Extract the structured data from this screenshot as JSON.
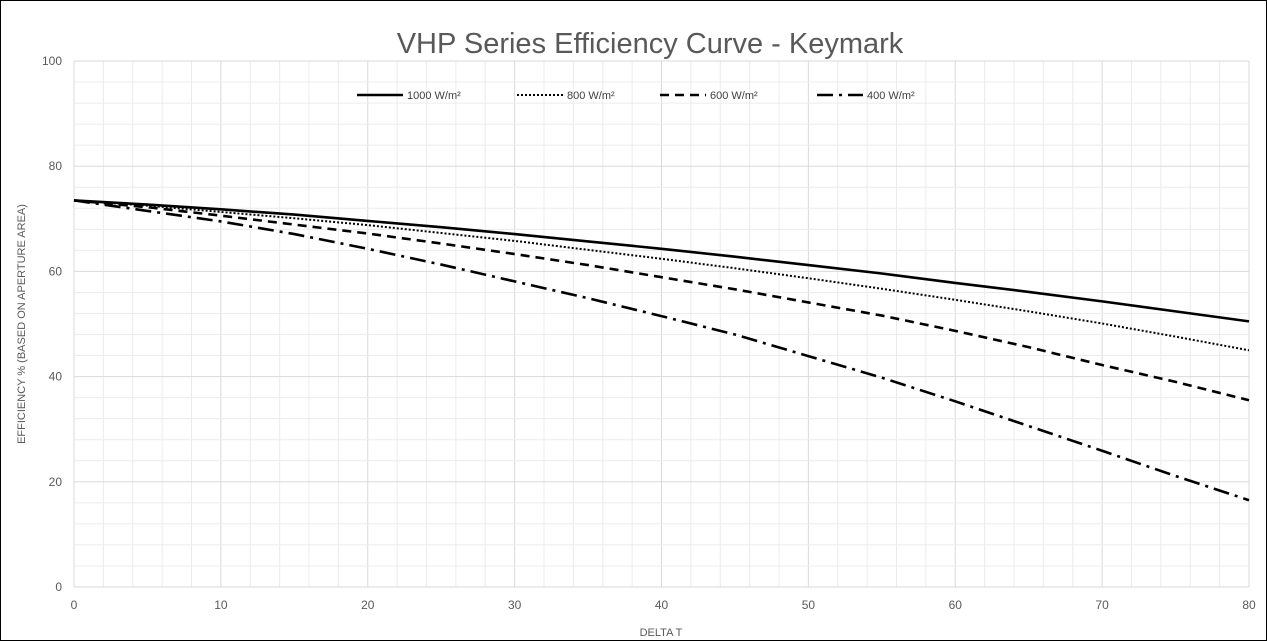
{
  "chart_data": {
    "type": "line",
    "title": "VHP Series Efficiency Curve - Keymark",
    "xlabel": "DELTA T",
    "ylabel": "EFFICIENCY % (BASED ON APERTURE AREA)",
    "xlim": [
      0,
      80
    ],
    "ylim": [
      0,
      100
    ],
    "x_ticks": [
      "0",
      "10",
      "20",
      "30",
      "40",
      "50",
      "60",
      "70",
      "80"
    ],
    "y_ticks": [
      "0",
      "20",
      "40",
      "60",
      "80",
      "100"
    ],
    "grid": true,
    "legend_position": "top",
    "x": [
      0,
      5,
      10,
      15,
      20,
      25,
      30,
      35,
      40,
      45,
      50,
      55,
      60,
      65,
      70,
      75,
      80
    ],
    "series": [
      {
        "name": "1000 W/m²",
        "dash": "solid",
        "values": [
          73.5,
          72.7,
          71.8,
          70.8,
          69.6,
          68.4,
          67.1,
          65.7,
          64.3,
          62.8,
          61.2,
          59.6,
          57.8,
          56.1,
          54.3,
          52.4,
          50.5
        ]
      },
      {
        "name": "800 W/m²",
        "dash": "dotted",
        "values": [
          73.5,
          72.5,
          71.3,
          70.1,
          68.8,
          67.3,
          65.8,
          64.1,
          62.4,
          60.6,
          58.7,
          56.7,
          54.6,
          52.4,
          50.1,
          47.6,
          45.0
        ]
      },
      {
        "name": "600 W/m²",
        "dash": "dashed",
        "values": [
          73.5,
          72.2,
          70.6,
          68.9,
          67.2,
          65.3,
          63.3,
          61.2,
          58.9,
          56.6,
          54.1,
          51.6,
          48.7,
          45.6,
          42.2,
          39.0,
          35.5
        ]
      },
      {
        "name": "400 W/m²",
        "dash": "dashdot",
        "values": [
          73.5,
          71.5,
          69.5,
          67.1,
          64.3,
          61.3,
          58.1,
          54.9,
          51.5,
          48.0,
          43.9,
          39.8,
          35.3,
          30.6,
          25.9,
          21.1,
          16.5
        ]
      }
    ]
  }
}
